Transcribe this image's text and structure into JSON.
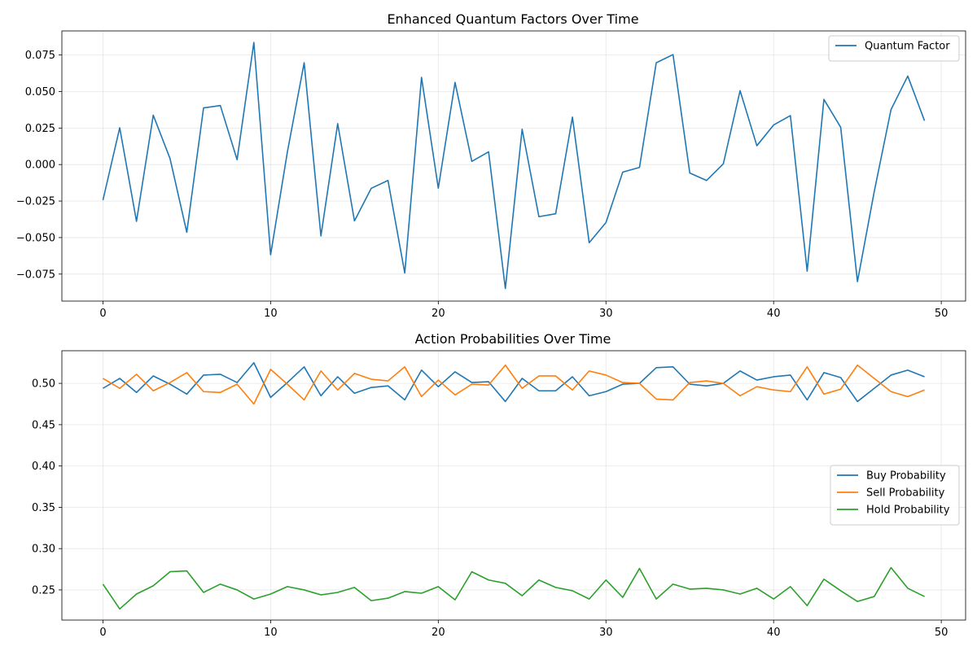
{
  "chart_data": [
    {
      "type": "line",
      "title": "Enhanced Quantum Factors Over Time",
      "xlabel": "",
      "ylabel": "",
      "xlim": [
        -2.45,
        51.45
      ],
      "ylim": [
        -0.0935,
        0.0915
      ],
      "xticks": [
        0,
        10,
        20,
        30,
        40,
        50
      ],
      "xtick_labels": [
        "0",
        "10",
        "20",
        "30",
        "40",
        "50"
      ],
      "yticks": [
        -0.075,
        -0.05,
        -0.025,
        0.0,
        0.025,
        0.05,
        0.075
      ],
      "ytick_labels": [
        "−0.075",
        "−0.050",
        "−0.025",
        "0.000",
        "0.025",
        "0.050",
        "0.075"
      ],
      "grid": true,
      "legend_position": "upper right",
      "x": [
        0,
        1,
        2,
        3,
        4,
        5,
        6,
        7,
        8,
        9,
        10,
        11,
        12,
        13,
        14,
        15,
        16,
        17,
        18,
        19,
        20,
        21,
        22,
        23,
        24,
        25,
        26,
        27,
        28,
        29,
        30,
        31,
        32,
        33,
        34,
        35,
        36,
        37,
        38,
        39,
        40,
        41,
        42,
        43,
        44,
        45,
        46,
        47,
        48,
        49
      ],
      "series": [
        {
          "name": "Quantum Factor",
          "color": "#1f77b4",
          "values": [
            -0.0244,
            0.0252,
            -0.0389,
            0.0338,
            0.0041,
            -0.0464,
            0.0388,
            0.0404,
            0.0033,
            0.0836,
            -0.0618,
            0.0087,
            0.0697,
            -0.0489,
            0.028,
            -0.0386,
            -0.0163,
            -0.0109,
            -0.0743,
            0.0597,
            -0.0162,
            0.0562,
            0.0022,
            0.0087,
            -0.0849,
            0.0242,
            -0.0357,
            -0.0337,
            0.0325,
            -0.0535,
            -0.0397,
            -0.0052,
            -0.002,
            0.0697,
            0.0753,
            -0.0058,
            -0.0109,
            0.0005,
            0.0506,
            0.0129,
            0.0271,
            0.0335,
            -0.073,
            0.0446,
            0.0255,
            -0.0802,
            -0.0186,
            0.0376,
            0.0606,
            0.03
          ]
        }
      ]
    },
    {
      "type": "line",
      "title": "Action Probabilities Over Time",
      "xlabel": "",
      "ylabel": "",
      "xlim": [
        -2.45,
        51.45
      ],
      "ylim": [
        0.2135,
        0.5395
      ],
      "xticks": [
        0,
        10,
        20,
        30,
        40,
        50
      ],
      "xtick_labels": [
        "0",
        "10",
        "20",
        "30",
        "40",
        "50"
      ],
      "yticks": [
        0.25,
        0.3,
        0.35,
        0.4,
        0.45,
        0.5
      ],
      "ytick_labels": [
        "0.25",
        "0.30",
        "0.35",
        "0.40",
        "0.45",
        "0.50"
      ],
      "grid": true,
      "legend_position": "center right",
      "x": [
        0,
        1,
        2,
        3,
        4,
        5,
        6,
        7,
        8,
        9,
        10,
        11,
        12,
        13,
        14,
        15,
        16,
        17,
        18,
        19,
        20,
        21,
        22,
        23,
        24,
        25,
        26,
        27,
        28,
        29,
        30,
        31,
        32,
        33,
        34,
        35,
        36,
        37,
        38,
        39,
        40,
        41,
        42,
        43,
        44,
        45,
        46,
        47,
        48,
        49
      ],
      "series": [
        {
          "name": "Buy Probability",
          "color": "#1f77b4",
          "values": [
            0.494,
            0.506,
            0.489,
            0.509,
            0.499,
            0.487,
            0.51,
            0.511,
            0.501,
            0.525,
            0.483,
            0.501,
            0.52,
            0.485,
            0.508,
            0.488,
            0.495,
            0.497,
            0.48,
            0.516,
            0.496,
            0.514,
            0.501,
            0.502,
            0.478,
            0.506,
            0.491,
            0.491,
            0.508,
            0.485,
            0.49,
            0.499,
            0.5,
            0.519,
            0.52,
            0.499,
            0.497,
            0.5,
            0.515,
            0.504,
            0.508,
            0.51,
            0.48,
            0.513,
            0.507,
            0.478,
            0.494,
            0.51,
            0.516,
            0.508
          ]
        },
        {
          "name": "Sell Probability",
          "color": "#ff7f0e",
          "values": [
            0.506,
            0.494,
            0.511,
            0.491,
            0.501,
            0.513,
            0.49,
            0.489,
            0.499,
            0.475,
            0.517,
            0.499,
            0.48,
            0.515,
            0.492,
            0.512,
            0.505,
            0.503,
            0.52,
            0.484,
            0.504,
            0.486,
            0.499,
            0.498,
            0.522,
            0.494,
            0.509,
            0.509,
            0.492,
            0.515,
            0.51,
            0.501,
            0.5,
            0.481,
            0.48,
            0.501,
            0.503,
            0.5,
            0.485,
            0.496,
            0.492,
            0.49,
            0.52,
            0.487,
            0.493,
            0.522,
            0.506,
            0.49,
            0.484,
            0.492
          ]
        },
        {
          "name": "Hold Probability",
          "color": "#2ca02c",
          "values": [
            0.257,
            0.227,
            0.245,
            0.255,
            0.272,
            0.273,
            0.247,
            0.257,
            0.25,
            0.239,
            0.245,
            0.254,
            0.25,
            0.244,
            0.247,
            0.253,
            0.237,
            0.24,
            0.248,
            0.246,
            0.254,
            0.238,
            0.272,
            0.262,
            0.258,
            0.243,
            0.262,
            0.253,
            0.249,
            0.239,
            0.262,
            0.241,
            0.276,
            0.239,
            0.257,
            0.251,
            0.252,
            0.25,
            0.245,
            0.252,
            0.239,
            0.254,
            0.231,
            0.263,
            0.249,
            0.236,
            0.242,
            0.277,
            0.252,
            0.242
          ]
        }
      ]
    }
  ]
}
